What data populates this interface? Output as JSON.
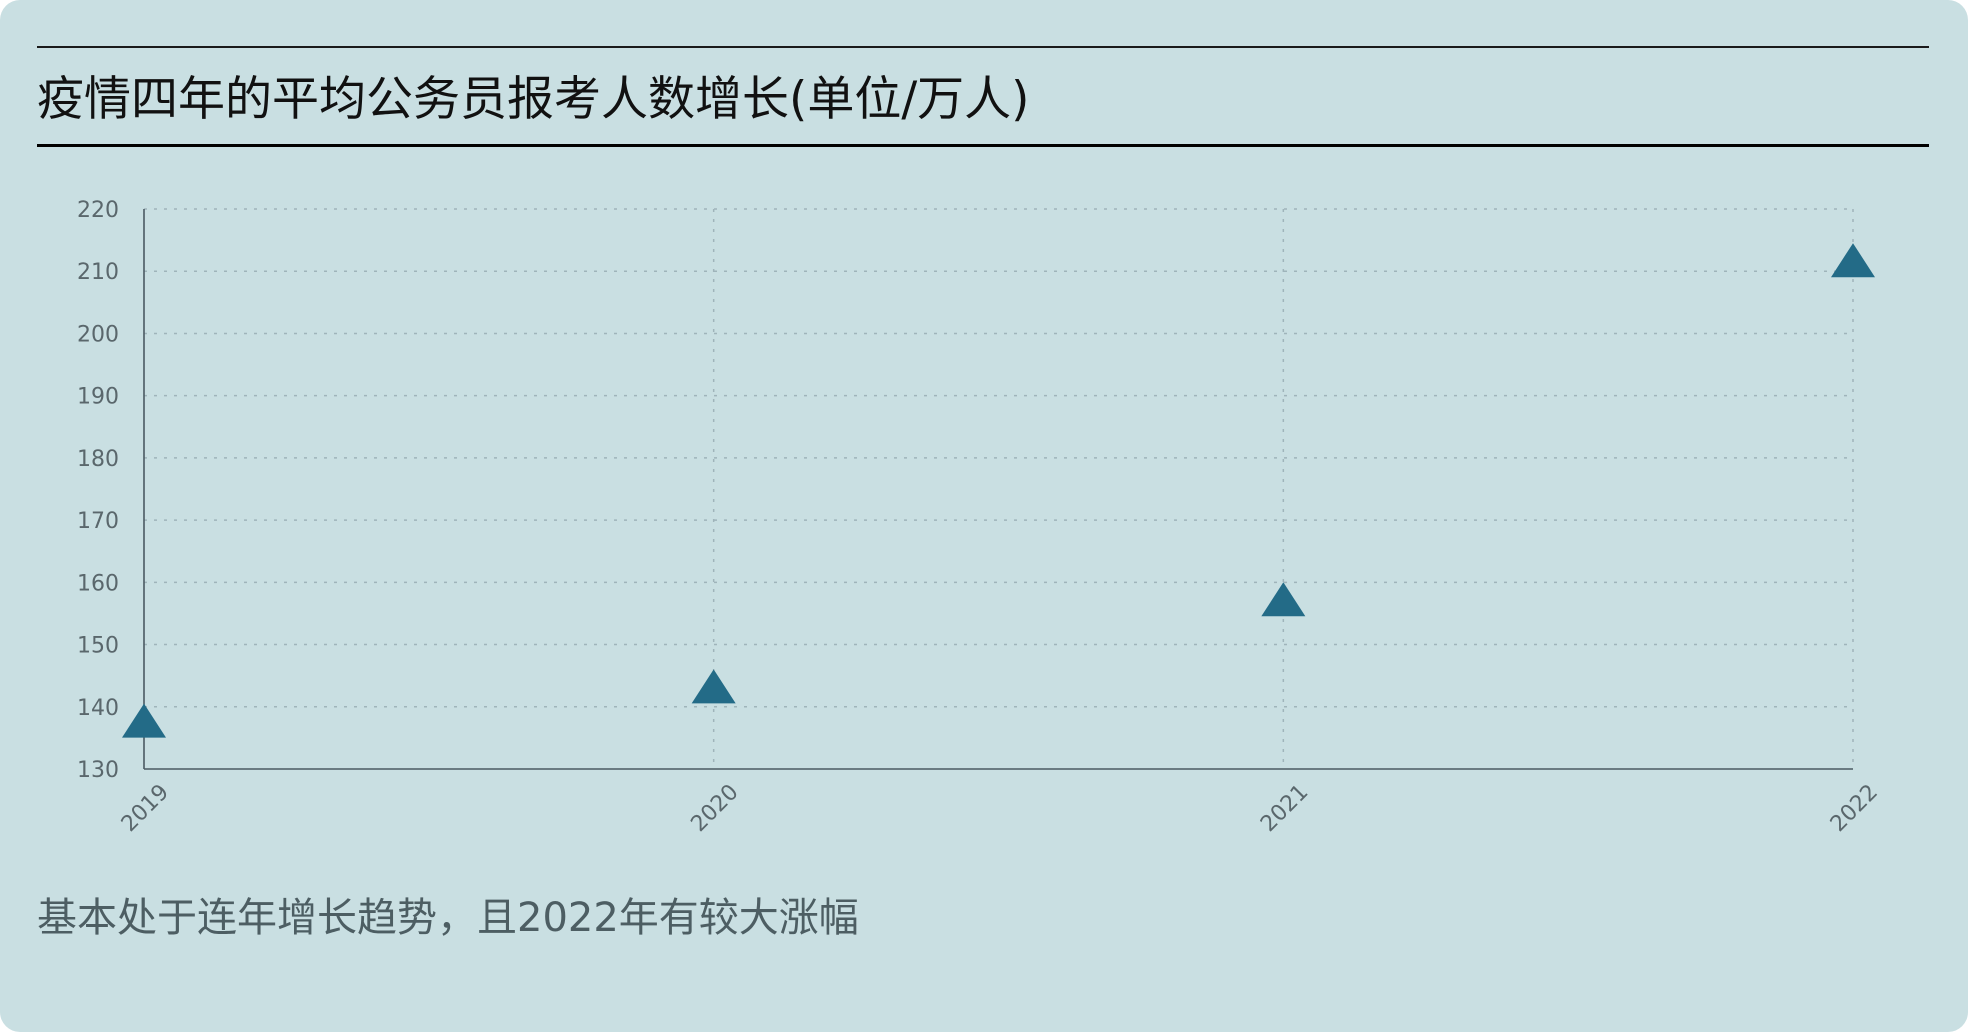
{
  "title": "疫情四年的平均公务员报考人数增长(单位/万人)",
  "note": "基本处于连年增长趋势，且2022年有较大涨幅",
  "colors": {
    "background": "#c9dfe2",
    "marker": "#236b87",
    "axis": "#4a5a62",
    "grid": "#9fb4ba",
    "tick_text": "#5a676c"
  },
  "chart_data": {
    "type": "scatter",
    "marker": "triangle",
    "categories": [
      "2019",
      "2020",
      "2021",
      "2022"
    ],
    "values": [
      137.5,
      143,
      157,
      211.5
    ],
    "ylim": [
      130,
      220
    ],
    "yticks": [
      130,
      140,
      150,
      160,
      170,
      180,
      190,
      200,
      210,
      220
    ],
    "xlabel": "",
    "ylabel": "",
    "grid": true,
    "x_tick_rotation": -45
  }
}
